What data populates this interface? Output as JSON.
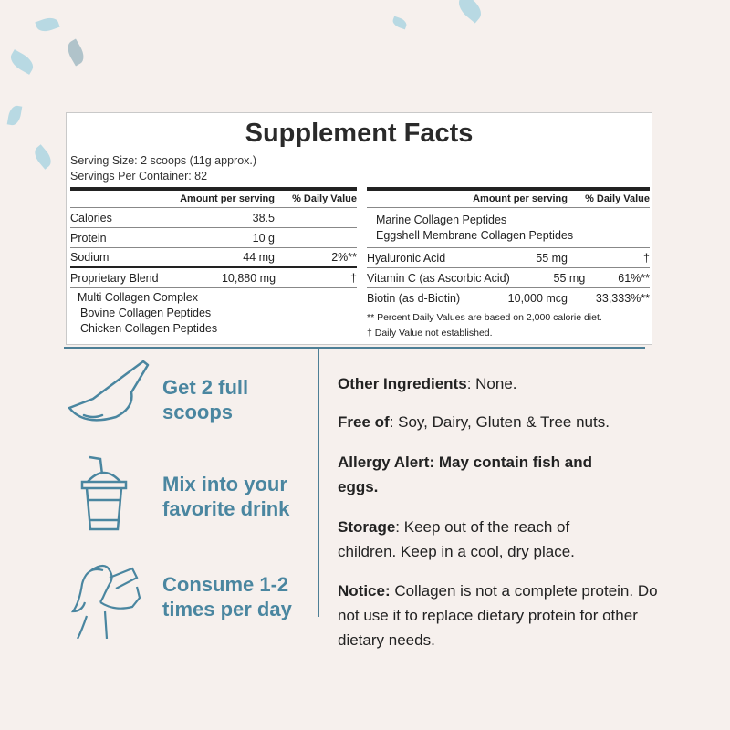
{
  "facts": {
    "title": "Supplement Facts",
    "serving_size": "Serving Size: 2 scoops (11g approx.)",
    "servings_per_container": "Servings Per Container: 82",
    "header": {
      "amount": "Amount per serving",
      "dv": "% Daily Value"
    },
    "left_rows": [
      {
        "name": "Calories",
        "amount": "38.5",
        "dv": ""
      },
      {
        "name": "Protein",
        "amount": "10 g",
        "dv": ""
      },
      {
        "name": "Sodium",
        "amount": "44 mg",
        "dv": "2%**"
      },
      {
        "name": "Proprietary Blend",
        "amount": "10,880 mg",
        "dv": "†"
      }
    ],
    "blend": [
      "Multi Collagen Complex",
      "Bovine Collagen Peptides",
      "Chicken Collagen Peptides"
    ],
    "blend_cont": [
      "Marine Collagen Peptides",
      "Eggshell Membrane Collagen Peptides"
    ],
    "right_rows": [
      {
        "name": "Hyaluronic Acid",
        "amount": "55 mg",
        "dv": "†"
      },
      {
        "name": "Vitamin C (as Ascorbic Acid)",
        "amount": "55 mg",
        "dv": "61%**"
      },
      {
        "name": "Biotin (as d-Biotin)",
        "amount": "10,000 mcg",
        "dv": "33,333%**"
      }
    ],
    "notes": [
      "** Percent Daily Values are based on 2,000 calorie diet.",
      "† Daily Value not established."
    ]
  },
  "steps": [
    {
      "icon": "scoop-icon",
      "line1": "Get 2 full",
      "line2": "scoops"
    },
    {
      "icon": "drink-cup-icon",
      "line1": "Mix into your",
      "line2": "favorite drink"
    },
    {
      "icon": "woman-drinking-icon",
      "line1": "Consume 1-2",
      "line2": "times per day"
    }
  ],
  "info": [
    {
      "label": "Other Ingredients",
      "text": ": None."
    },
    {
      "label": "Free of",
      "text": ": Soy, Dairy, Gluten & Tree nuts."
    },
    {
      "label": "Allergy Alert: May contain fish and eggs.",
      "text": ""
    },
    {
      "label": "Storage",
      "text": ": Keep out of the reach of children. Keep in a cool, dry place."
    },
    {
      "label": "Notice:",
      "text": " Collagen is not a complete protein. Do not use it to replace dietary protein for other dietary needs."
    }
  ],
  "colors": {
    "accent": "#4a86a0",
    "background": "#f6f0ed"
  }
}
